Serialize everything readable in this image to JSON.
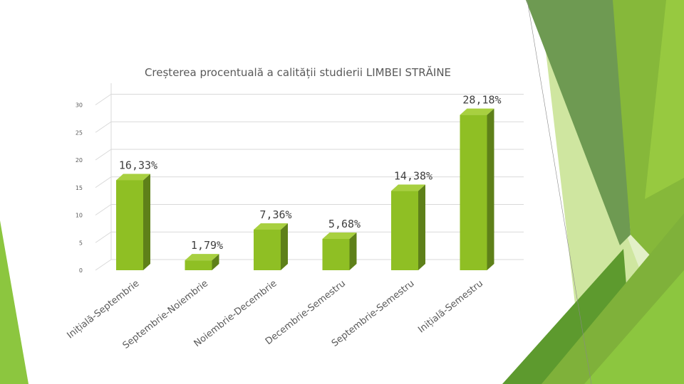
{
  "chart_data": {
    "type": "bar",
    "title": "Creșterea procentuală a calității studierii LIMBEI STRĂINE",
    "categories": [
      "Inițială-Septembrie",
      "Septembrie-Noiembrie",
      "Noiembrie-Decembrie",
      "Decembrie-Semestru",
      "Septembrie-Semestru",
      "Inițială-Semestru"
    ],
    "values": [
      16.33,
      1.79,
      7.36,
      5.68,
      14.38,
      28.18
    ],
    "data_labels": [
      "16,33%",
      "1,79%",
      "7,36%",
      "5,68%",
      "14,38%",
      "28,18%"
    ],
    "yticks": [
      "0",
      "5",
      "10",
      "15",
      "20",
      "25",
      "30"
    ],
    "ylim": [
      0,
      32
    ],
    "grid": true,
    "colors": {
      "bar_front": "#8fbf24",
      "bar_side": "#5e8019",
      "bar_top": "#a8d040"
    }
  },
  "theme": {
    "accent_colors": [
      "#8cc63f",
      "#70a23a",
      "#5b9a2c",
      "#b5d96b",
      "#d9ecb1"
    ]
  }
}
